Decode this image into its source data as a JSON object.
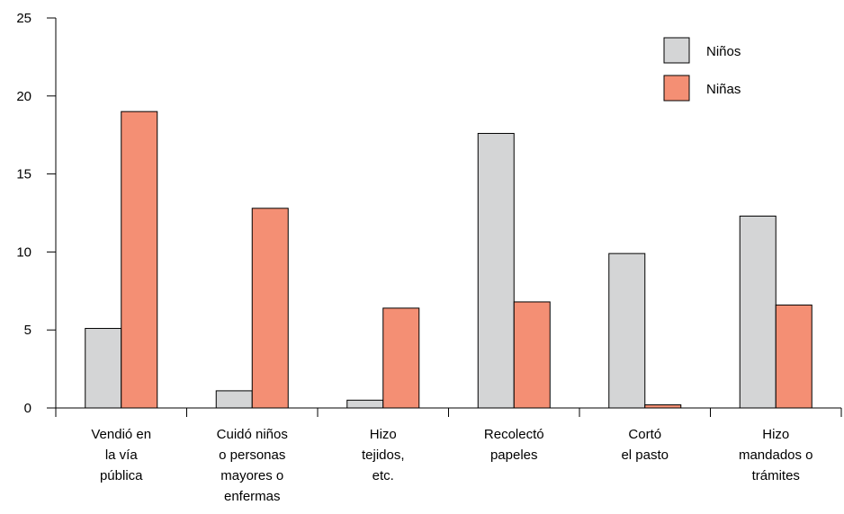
{
  "chart_data": {
    "type": "bar",
    "categories": [
      [
        "Vendió en",
        "la vía",
        "pública"
      ],
      [
        "Cuidó niños",
        "o personas",
        "mayores o",
        "enfermas"
      ],
      [
        "Hizo",
        "tejidos,",
        "etc."
      ],
      [
        "Recolectó",
        "papeles"
      ],
      [
        "Cortó",
        "el pasto"
      ],
      [
        "Hizo",
        "mandados o",
        "trámites"
      ]
    ],
    "series": [
      {
        "name": "Niños",
        "color": "#d4d5d6",
        "values": [
          5.1,
          1.1,
          0.5,
          17.6,
          9.9,
          12.3
        ]
      },
      {
        "name": "Niñas",
        "color": "#f48f74",
        "values": [
          19.0,
          12.8,
          6.4,
          6.8,
          0.2,
          6.6
        ]
      }
    ],
    "yticks": [
      "0",
      "5",
      "10",
      "15",
      "20",
      "25"
    ],
    "ylim": [
      0,
      25
    ],
    "legend_position": "top-right",
    "grid": false
  }
}
